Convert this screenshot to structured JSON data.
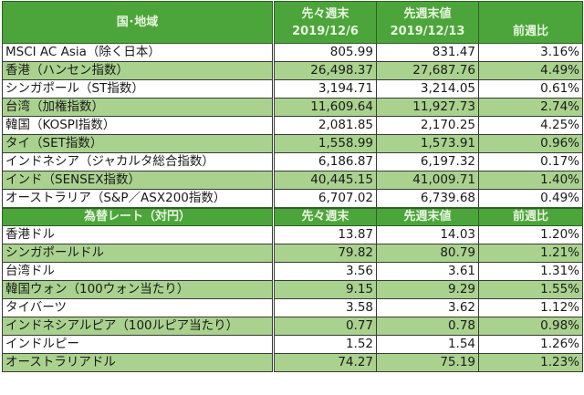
{
  "stocks": {
    "header": {
      "region": "国･地域",
      "prev2_label": "先々週末",
      "prev2_date": "2019/12/6",
      "prev_label": "先週末値",
      "prev_date": "2019/12/13",
      "change": "前週比"
    },
    "rows": [
      {
        "name": "MSCI AC Asia（除く日本）",
        "prev2": "805.99",
        "prev": "831.47",
        "change": "3.16%"
      },
      {
        "name": "香港（ハンセン指数）",
        "prev2": "26,498.37",
        "prev": "27,687.76",
        "change": "4.49%"
      },
      {
        "name": "シンガポール（ST指数）",
        "prev2": "3,194.71",
        "prev": "3,214.05",
        "change": "0.61%"
      },
      {
        "name": "台湾（加権指数）",
        "prev2": "11,609.64",
        "prev": "11,927.73",
        "change": "2.74%"
      },
      {
        "name": "韓国（KOSPI指数）",
        "prev2": "2,081.85",
        "prev": "2,170.25",
        "change": "4.25%"
      },
      {
        "name": "タイ（SET指数）",
        "prev2": "1,558.99",
        "prev": "1,573.91",
        "change": "0.96%"
      },
      {
        "name": "インドネシア（ジャカルタ総合指数）",
        "prev2": "6,186.87",
        "prev": "6,197.32",
        "change": "0.17%"
      },
      {
        "name": "インド（SENSEX指数）",
        "prev2": "40,445.15",
        "prev": "41,009.71",
        "change": "1.40%"
      },
      {
        "name": "オーストラリア（S&P／ASX200指数）",
        "prev2": "6,707.02",
        "prev": "6,739.68",
        "change": "0.49%"
      }
    ]
  },
  "fx": {
    "header": {
      "title": "為替レート（対円）",
      "prev2_label": "先々週末",
      "prev_label": "先週末値",
      "change": "前週比"
    },
    "rows": [
      {
        "name": "香港ドル",
        "prev2": "13.87",
        "prev": "14.03",
        "change": "1.20%"
      },
      {
        "name": "シンガポールドル",
        "prev2": "79.82",
        "prev": "80.79",
        "change": "1.21%"
      },
      {
        "name": "台湾ドル",
        "prev2": "3.56",
        "prev": "3.61",
        "change": "1.31%"
      },
      {
        "name": "韓国ウォン（100ウォン当たり）",
        "prev2": "9.15",
        "prev": "9.29",
        "change": "1.55%"
      },
      {
        "name": "タイバーツ",
        "prev2": "3.58",
        "prev": "3.62",
        "change": "1.12%"
      },
      {
        "name": "インドネシアルピア（100ルピア当たり）",
        "prev2": "0.77",
        "prev": "0.78",
        "change": "0.98%"
      },
      {
        "name": "インドルピー",
        "prev2": "1.52",
        "prev": "1.54",
        "change": "1.26%"
      },
      {
        "name": "オーストラリアドル",
        "prev2": "74.27",
        "prev": "75.19",
        "change": "1.23%"
      }
    ]
  },
  "colors": {
    "header_green": "#4ca53a",
    "row_alt_green": "#a9d28e",
    "header_text": "#e8f5e0"
  }
}
